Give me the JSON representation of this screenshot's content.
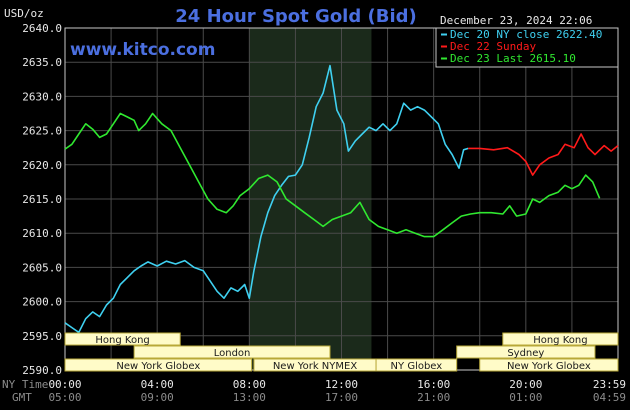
{
  "header": {
    "title": "24 Hour Spot Gold (Bid)",
    "website": "www.kitco.com",
    "timestamp": "December 23, 2024 22:06",
    "unit_label": "USD/oz"
  },
  "legend": [
    {
      "label": "Dec 20 NY close 2622.40",
      "color": "#3fd0f0"
    },
    {
      "label": "Dec 22 Sunday",
      "color": "#ff1a1a"
    },
    {
      "label": "Dec 23 Last 2615.10",
      "color": "#30e830"
    }
  ],
  "axis_labels": {
    "ny_time": "NY Time",
    "gmt": "GMT"
  },
  "sessions": [
    {
      "name": "Hong Kong",
      "start": -3,
      "end": 5,
      "row": 0
    },
    {
      "name": "Hong Kong",
      "start": 19,
      "end": 24,
      "row": 0
    },
    {
      "name": "London",
      "start": 3,
      "end": 11.5,
      "row": 1
    },
    {
      "name": "Sydney",
      "start": 17,
      "end": 23,
      "row": 1
    },
    {
      "name": "New York Globex",
      "start": -3,
      "end": 8.1,
      "row": 2
    },
    {
      "name": "New York NYMEX",
      "start": 8.2,
      "end": 13.5,
      "row": 2
    },
    {
      "name": "NY Globex",
      "start": 13.5,
      "end": 17,
      "row": 2
    },
    {
      "name": "New York Globex",
      "start": 18,
      "end": 24,
      "row": 2
    }
  ],
  "chart_data": {
    "type": "line",
    "title": "24 Hour Spot Gold (Bid)",
    "xlabel": "NY Time",
    "ylabel": "USD/oz",
    "x_unit": "hours (NY time)",
    "xlim": [
      0,
      24
    ],
    "ylim": [
      2590,
      2640
    ],
    "grid": true,
    "legend_position": "top-right",
    "nymex_band": [
      8,
      13.3
    ],
    "x_ticks": [
      "00:00",
      "04:00",
      "08:00",
      "12:00",
      "16:00",
      "20:00",
      "23:59"
    ],
    "x_ticks_gmt": [
      "05:00",
      "09:00",
      "13:00",
      "17:00",
      "21:00",
      "01:00",
      "04:59"
    ],
    "y_ticks": [
      2590,
      2595,
      2600,
      2605,
      2610,
      2615,
      2620,
      2625,
      2630,
      2635,
      2640
    ],
    "series": [
      {
        "name": "Dec 20 NY close 2622.40",
        "color": "#3fd0f0",
        "points": [
          [
            0,
            2596.9
          ],
          [
            0.3,
            2596.2
          ],
          [
            0.6,
            2595.5
          ],
          [
            0.9,
            2597.5
          ],
          [
            1.2,
            2598.5
          ],
          [
            1.5,
            2597.8
          ],
          [
            1.8,
            2599.5
          ],
          [
            2.1,
            2600.5
          ],
          [
            2.4,
            2602.5
          ],
          [
            2.7,
            2603.5
          ],
          [
            3,
            2604.5
          ],
          [
            3.3,
            2605.2
          ],
          [
            3.6,
            2605.8
          ],
          [
            4,
            2605.2
          ],
          [
            4.4,
            2605.9
          ],
          [
            4.8,
            2605.5
          ],
          [
            5.2,
            2606
          ],
          [
            5.6,
            2605
          ],
          [
            6,
            2604.5
          ],
          [
            6.3,
            2603
          ],
          [
            6.6,
            2601.5
          ],
          [
            6.9,
            2600.5
          ],
          [
            7.2,
            2602
          ],
          [
            7.5,
            2601.5
          ],
          [
            7.8,
            2602.5
          ],
          [
            8,
            2600.5
          ],
          [
            8.2,
            2604.5
          ],
          [
            8.5,
            2609.5
          ],
          [
            8.8,
            2613
          ],
          [
            9.1,
            2615.5
          ],
          [
            9.4,
            2617
          ],
          [
            9.7,
            2618.3
          ],
          [
            10,
            2618.5
          ],
          [
            10.3,
            2620
          ],
          [
            10.6,
            2624
          ],
          [
            10.9,
            2628.5
          ],
          [
            11.2,
            2630.5
          ],
          [
            11.5,
            2634.5
          ],
          [
            11.8,
            2628
          ],
          [
            12.1,
            2626
          ],
          [
            12.3,
            2622
          ],
          [
            12.6,
            2623.5
          ],
          [
            12.9,
            2624.5
          ],
          [
            13.2,
            2625.5
          ],
          [
            13.5,
            2625
          ],
          [
            13.8,
            2626
          ],
          [
            14.1,
            2625
          ],
          [
            14.4,
            2626
          ],
          [
            14.7,
            2629
          ],
          [
            15,
            2628
          ],
          [
            15.3,
            2628.5
          ],
          [
            15.6,
            2628
          ],
          [
            15.9,
            2627
          ],
          [
            16.2,
            2626
          ],
          [
            16.5,
            2623
          ],
          [
            16.8,
            2621.5
          ],
          [
            17.1,
            2619.5
          ],
          [
            17.3,
            2622.2
          ],
          [
            17.5,
            2622.4
          ]
        ]
      },
      {
        "name": "Dec 22 Sunday",
        "color": "#ff1a1a",
        "points": [
          [
            17.5,
            2622.4
          ],
          [
            18,
            2622.4
          ],
          [
            18.6,
            2622.2
          ],
          [
            19.2,
            2622.5
          ],
          [
            19.7,
            2621.5
          ],
          [
            20,
            2620.5
          ],
          [
            20.3,
            2618.5
          ],
          [
            20.6,
            2620
          ],
          [
            21,
            2621
          ],
          [
            21.4,
            2621.5
          ],
          [
            21.7,
            2623
          ],
          [
            22.1,
            2622.5
          ],
          [
            22.4,
            2624.5
          ],
          [
            22.7,
            2622.5
          ],
          [
            23,
            2621.5
          ],
          [
            23.4,
            2622.8
          ],
          [
            23.7,
            2622
          ],
          [
            24,
            2622.8
          ]
        ]
      },
      {
        "name": "Dec 23 Last 2615.10",
        "color": "#30e830",
        "points": [
          [
            0,
            2622.3
          ],
          [
            0.3,
            2623
          ],
          [
            0.6,
            2624.5
          ],
          [
            0.9,
            2626
          ],
          [
            1.2,
            2625.2
          ],
          [
            1.5,
            2624
          ],
          [
            1.8,
            2624.5
          ],
          [
            2.1,
            2626
          ],
          [
            2.4,
            2627.5
          ],
          [
            2.7,
            2627
          ],
          [
            3,
            2626.5
          ],
          [
            3.2,
            2625
          ],
          [
            3.5,
            2626
          ],
          [
            3.8,
            2627.5
          ],
          [
            4.2,
            2626
          ],
          [
            4.6,
            2625
          ],
          [
            5,
            2622.5
          ],
          [
            5.4,
            2620
          ],
          [
            5.8,
            2617.5
          ],
          [
            6.2,
            2615
          ],
          [
            6.6,
            2613.5
          ],
          [
            7,
            2613
          ],
          [
            7.3,
            2614
          ],
          [
            7.6,
            2615.5
          ],
          [
            8,
            2616.5
          ],
          [
            8.4,
            2618
          ],
          [
            8.8,
            2618.5
          ],
          [
            9.2,
            2617.5
          ],
          [
            9.6,
            2615
          ],
          [
            10,
            2614
          ],
          [
            10.4,
            2613
          ],
          [
            10.8,
            2612
          ],
          [
            11.2,
            2611
          ],
          [
            11.6,
            2612
          ],
          [
            12,
            2612.5
          ],
          [
            12.4,
            2613
          ],
          [
            12.8,
            2614.5
          ],
          [
            13.2,
            2612
          ],
          [
            13.6,
            2611
          ],
          [
            14,
            2610.5
          ],
          [
            14.4,
            2610
          ],
          [
            14.8,
            2610.5
          ],
          [
            15.2,
            2610
          ],
          [
            15.6,
            2609.5
          ],
          [
            16,
            2609.5
          ],
          [
            16.4,
            2610.5
          ],
          [
            16.8,
            2611.5
          ],
          [
            17.2,
            2612.5
          ],
          [
            17.6,
            2612.8
          ],
          [
            18,
            2613
          ],
          [
            18.5,
            2613
          ],
          [
            19,
            2612.8
          ],
          [
            19.3,
            2614
          ],
          [
            19.6,
            2612.5
          ],
          [
            20,
            2612.8
          ],
          [
            20.3,
            2615
          ],
          [
            20.6,
            2614.5
          ],
          [
            21,
            2615.5
          ],
          [
            21.4,
            2616
          ],
          [
            21.7,
            2617
          ],
          [
            22,
            2616.5
          ],
          [
            22.3,
            2617
          ],
          [
            22.6,
            2618.5
          ],
          [
            22.9,
            2617.5
          ],
          [
            23.2,
            2615.1
          ]
        ]
      }
    ]
  }
}
